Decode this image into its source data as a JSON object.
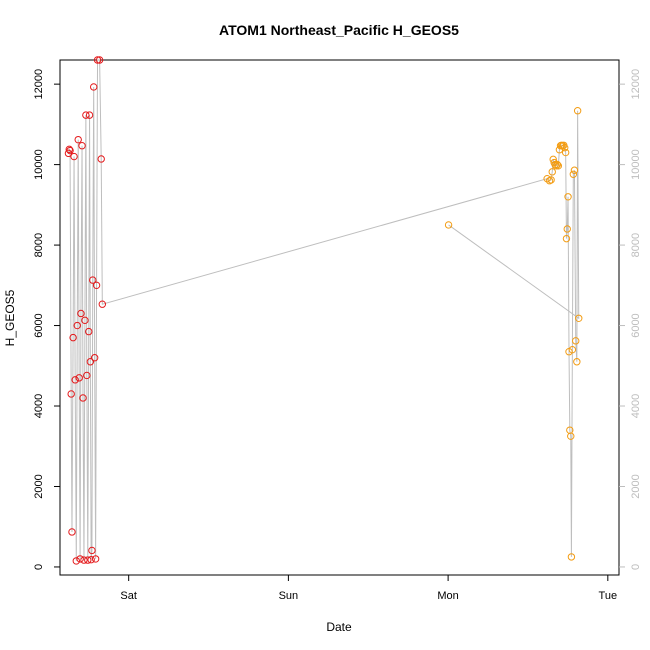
{
  "chart_data": {
    "type": "scatter",
    "title": "ATOM1 Northeast_Pacific H_GEOS5",
    "xlabel": "Date",
    "ylabel": "H_GEOS5",
    "x_unit": "days since Fri 00:00",
    "x_ticks": [
      {
        "label": "Sat",
        "value": 1
      },
      {
        "label": "Sun",
        "value": 2
      },
      {
        "label": "Mon",
        "value": 3
      },
      {
        "label": "Tue",
        "value": 4
      }
    ],
    "xlim": [
      0.57,
      4.07
    ],
    "ylim": [
      -200,
      12600
    ],
    "y_ticks": [
      0,
      2000,
      4000,
      6000,
      8000,
      10000,
      12000
    ],
    "grid": false,
    "line_color": "#bebebe",
    "series": [
      {
        "color": "#e41a1c",
        "points": [
          [
            0.623,
            10280
          ],
          [
            0.628,
            10380
          ],
          [
            0.633,
            10350
          ],
          [
            0.64,
            4300
          ],
          [
            0.645,
            870
          ],
          [
            0.652,
            5700
          ],
          [
            0.658,
            10200
          ],
          [
            0.665,
            4650
          ],
          [
            0.672,
            150
          ],
          [
            0.678,
            6000
          ],
          [
            0.684,
            10620
          ],
          [
            0.69,
            4700
          ],
          [
            0.696,
            200
          ],
          [
            0.701,
            6300
          ],
          [
            0.708,
            10470
          ],
          [
            0.714,
            4200
          ],
          [
            0.72,
            170
          ],
          [
            0.726,
            6130
          ],
          [
            0.732,
            11230
          ],
          [
            0.738,
            4760
          ],
          [
            0.744,
            170
          ],
          [
            0.75,
            5850
          ],
          [
            0.755,
            11230
          ],
          [
            0.76,
            5100
          ],
          [
            0.765,
            180
          ],
          [
            0.77,
            410
          ],
          [
            0.775,
            7130
          ],
          [
            0.781,
            11930
          ],
          [
            0.787,
            5200
          ],
          [
            0.793,
            200
          ],
          [
            0.799,
            7000
          ],
          [
            0.805,
            12600
          ],
          [
            0.818,
            12600
          ],
          [
            0.828,
            10140
          ],
          [
            0.835,
            6530
          ]
        ]
      },
      {
        "color": "#f39c12",
        "points": [
          [
            3.62,
            9650
          ],
          [
            3.635,
            9600
          ],
          [
            3.645,
            9620
          ],
          [
            3.652,
            9820
          ],
          [
            3.658,
            10130
          ],
          [
            3.664,
            10050
          ],
          [
            3.67,
            10000
          ],
          [
            3.677,
            9970
          ],
          [
            3.684,
            10000
          ],
          [
            3.69,
            9970
          ],
          [
            3.697,
            10370
          ],
          [
            3.704,
            10470
          ],
          [
            3.71,
            10480
          ],
          [
            3.717,
            10470
          ],
          [
            3.724,
            10480
          ],
          [
            3.73,
            10420
          ],
          [
            3.736,
            10300
          ],
          [
            3.741,
            8160
          ],
          [
            3.746,
            8400
          ],
          [
            3.751,
            9200
          ],
          [
            3.757,
            5350
          ],
          [
            3.762,
            3400
          ],
          [
            3.768,
            3250
          ],
          [
            3.772,
            250
          ],
          [
            3.778,
            5400
          ],
          [
            3.784,
            9760
          ],
          [
            3.791,
            9860
          ],
          [
            3.799,
            5620
          ],
          [
            3.806,
            5100
          ],
          [
            3.811,
            11340
          ],
          [
            3.818,
            6180
          ],
          [
            3.003,
            8500
          ]
        ]
      }
    ]
  }
}
